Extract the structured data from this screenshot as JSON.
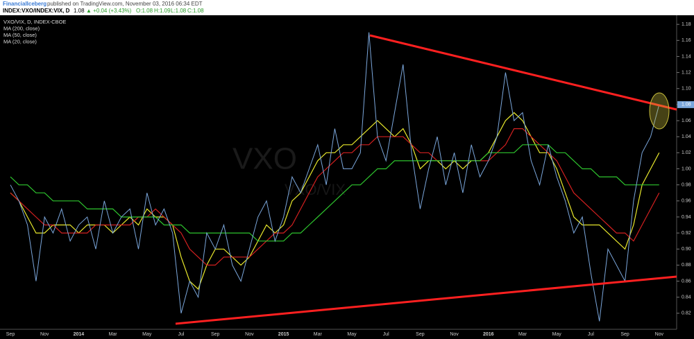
{
  "header": {
    "author": "FinancialIceberg",
    "published": "published on TradingView.com, November 03, 2016 06:34 EDT"
  },
  "quote": {
    "symbol": "INDEX:VXO/INDEX:VIX, D",
    "last": "1.08",
    "change": "▲ +0.04 (+3.43%)",
    "open": "O:1.08",
    "high": "H:1.09",
    "low": "L:1.08",
    "close": "C:1.08"
  },
  "chart_data": {
    "type": "line",
    "watermark": [
      "VXO",
      "VXO/VIX"
    ],
    "categories": [
      "Sep",
      null,
      null,
      null,
      "Nov",
      null,
      null,
      null,
      "2014",
      null,
      null,
      null,
      "Mar",
      null,
      null,
      null,
      "May",
      null,
      null,
      null,
      "Jul",
      null,
      null,
      null,
      "Sep",
      null,
      null,
      null,
      "Nov",
      null,
      null,
      null,
      "2015",
      null,
      null,
      null,
      "Mar",
      null,
      null,
      null,
      "May",
      null,
      null,
      null,
      "Jul",
      null,
      null,
      null,
      "Sep",
      null,
      null,
      null,
      "Nov",
      null,
      null,
      null,
      "2016",
      null,
      null,
      null,
      "Mar",
      null,
      null,
      null,
      "May",
      null,
      null,
      null,
      "Jul",
      null,
      null,
      null,
      "Sep",
      null,
      null,
      null,
      "Nov"
    ],
    "series": [
      {
        "name": "VXO/VIX, D, INDEX-CBOE",
        "color": "#7ba7dc",
        "values": [
          0.98,
          0.96,
          0.93,
          0.86,
          0.94,
          0.92,
          0.95,
          0.91,
          0.93,
          0.94,
          0.9,
          0.96,
          0.92,
          0.94,
          0.95,
          0.9,
          0.97,
          0.93,
          0.95,
          0.92,
          0.82,
          0.86,
          0.84,
          0.92,
          0.9,
          0.93,
          0.88,
          0.86,
          0.9,
          0.94,
          0.96,
          0.91,
          0.94,
          0.99,
          0.97,
          1.0,
          1.03,
          0.98,
          1.05,
          1.0,
          1.0,
          1.02,
          1.17,
          1.04,
          1.01,
          1.07,
          1.13,
          1.02,
          0.95,
          1.0,
          1.04,
          0.98,
          1.02,
          0.97,
          1.03,
          0.99,
          1.01,
          1.04,
          1.12,
          1.06,
          1.07,
          1.01,
          0.98,
          1.03,
          0.99,
          0.96,
          0.92,
          0.94,
          0.87,
          0.81,
          0.9,
          0.88,
          0.86,
          0.96,
          1.02,
          1.04,
          1.08
        ]
      },
      {
        "name": "MA (200, close)",
        "color": "#2ec62e",
        "values": [
          0.99,
          0.98,
          0.98,
          0.97,
          0.97,
          0.96,
          0.96,
          0.96,
          0.96,
          0.95,
          0.95,
          0.95,
          0.95,
          0.94,
          0.94,
          0.94,
          0.94,
          0.94,
          0.93,
          0.93,
          0.93,
          0.92,
          0.92,
          0.92,
          0.92,
          0.92,
          0.92,
          0.92,
          0.92,
          0.91,
          0.91,
          0.91,
          0.91,
          0.92,
          0.92,
          0.93,
          0.94,
          0.95,
          0.96,
          0.97,
          0.98,
          0.98,
          0.99,
          1.0,
          1.0,
          1.01,
          1.01,
          1.01,
          1.01,
          1.01,
          1.01,
          1.01,
          1.01,
          1.01,
          1.01,
          1.01,
          1.02,
          1.02,
          1.02,
          1.02,
          1.03,
          1.03,
          1.03,
          1.03,
          1.02,
          1.02,
          1.01,
          1.0,
          1.0,
          0.99,
          0.99,
          0.99,
          0.98,
          0.98,
          0.98,
          0.98,
          0.98
        ]
      },
      {
        "name": "MA (50, close)",
        "color": "#d42020",
        "values": [
          0.97,
          0.96,
          0.95,
          0.94,
          0.93,
          0.93,
          0.92,
          0.92,
          0.92,
          0.92,
          0.93,
          0.93,
          0.93,
          0.93,
          0.93,
          0.94,
          0.94,
          0.95,
          0.94,
          0.93,
          0.92,
          0.9,
          0.89,
          0.88,
          0.88,
          0.89,
          0.89,
          0.89,
          0.89,
          0.9,
          0.91,
          0.92,
          0.92,
          0.93,
          0.95,
          0.97,
          0.99,
          1.0,
          1.01,
          1.02,
          1.02,
          1.03,
          1.03,
          1.04,
          1.04,
          1.04,
          1.04,
          1.03,
          1.02,
          1.02,
          1.01,
          1.01,
          1.01,
          1.01,
          1.01,
          1.01,
          1.01,
          1.02,
          1.03,
          1.05,
          1.05,
          1.04,
          1.03,
          1.02,
          1.01,
          0.99,
          0.97,
          0.96,
          0.95,
          0.94,
          0.93,
          0.92,
          0.92,
          0.91,
          0.93,
          0.95,
          0.97
        ]
      },
      {
        "name": "MA (20, close)",
        "color": "#e8e82c",
        "values": [
          0.97,
          0.96,
          0.94,
          0.92,
          0.92,
          0.93,
          0.93,
          0.93,
          0.92,
          0.93,
          0.93,
          0.93,
          0.92,
          0.93,
          0.94,
          0.93,
          0.95,
          0.94,
          0.94,
          0.93,
          0.89,
          0.86,
          0.85,
          0.88,
          0.9,
          0.9,
          0.89,
          0.88,
          0.89,
          0.91,
          0.93,
          0.92,
          0.93,
          0.96,
          0.97,
          0.99,
          1.01,
          1.02,
          1.02,
          1.03,
          1.03,
          1.04,
          1.05,
          1.06,
          1.05,
          1.04,
          1.05,
          1.03,
          1.0,
          1.01,
          1.01,
          1.0,
          1.01,
          1.0,
          1.01,
          1.01,
          1.02,
          1.04,
          1.06,
          1.07,
          1.06,
          1.04,
          1.02,
          1.02,
          1.0,
          0.97,
          0.94,
          0.93,
          0.93,
          0.93,
          0.92,
          0.91,
          0.9,
          0.93,
          0.98,
          1.0,
          1.02
        ]
      }
    ],
    "ylim": [
      0.8,
      1.2
    ],
    "yticks": [
      0.82,
      0.84,
      0.86,
      0.88,
      {
        "value": 0.9,
        "label": "0.90"
      },
      0.92,
      0.94,
      0.96,
      0.98,
      {
        "value": 1,
        "label": "1.00"
      },
      1.02,
      1.04,
      1.06,
      1.08,
      {
        "value": 1.1,
        "label": "1.10"
      },
      1.12,
      1.14,
      1.16,
      1.18
    ],
    "grid": false
  }
}
